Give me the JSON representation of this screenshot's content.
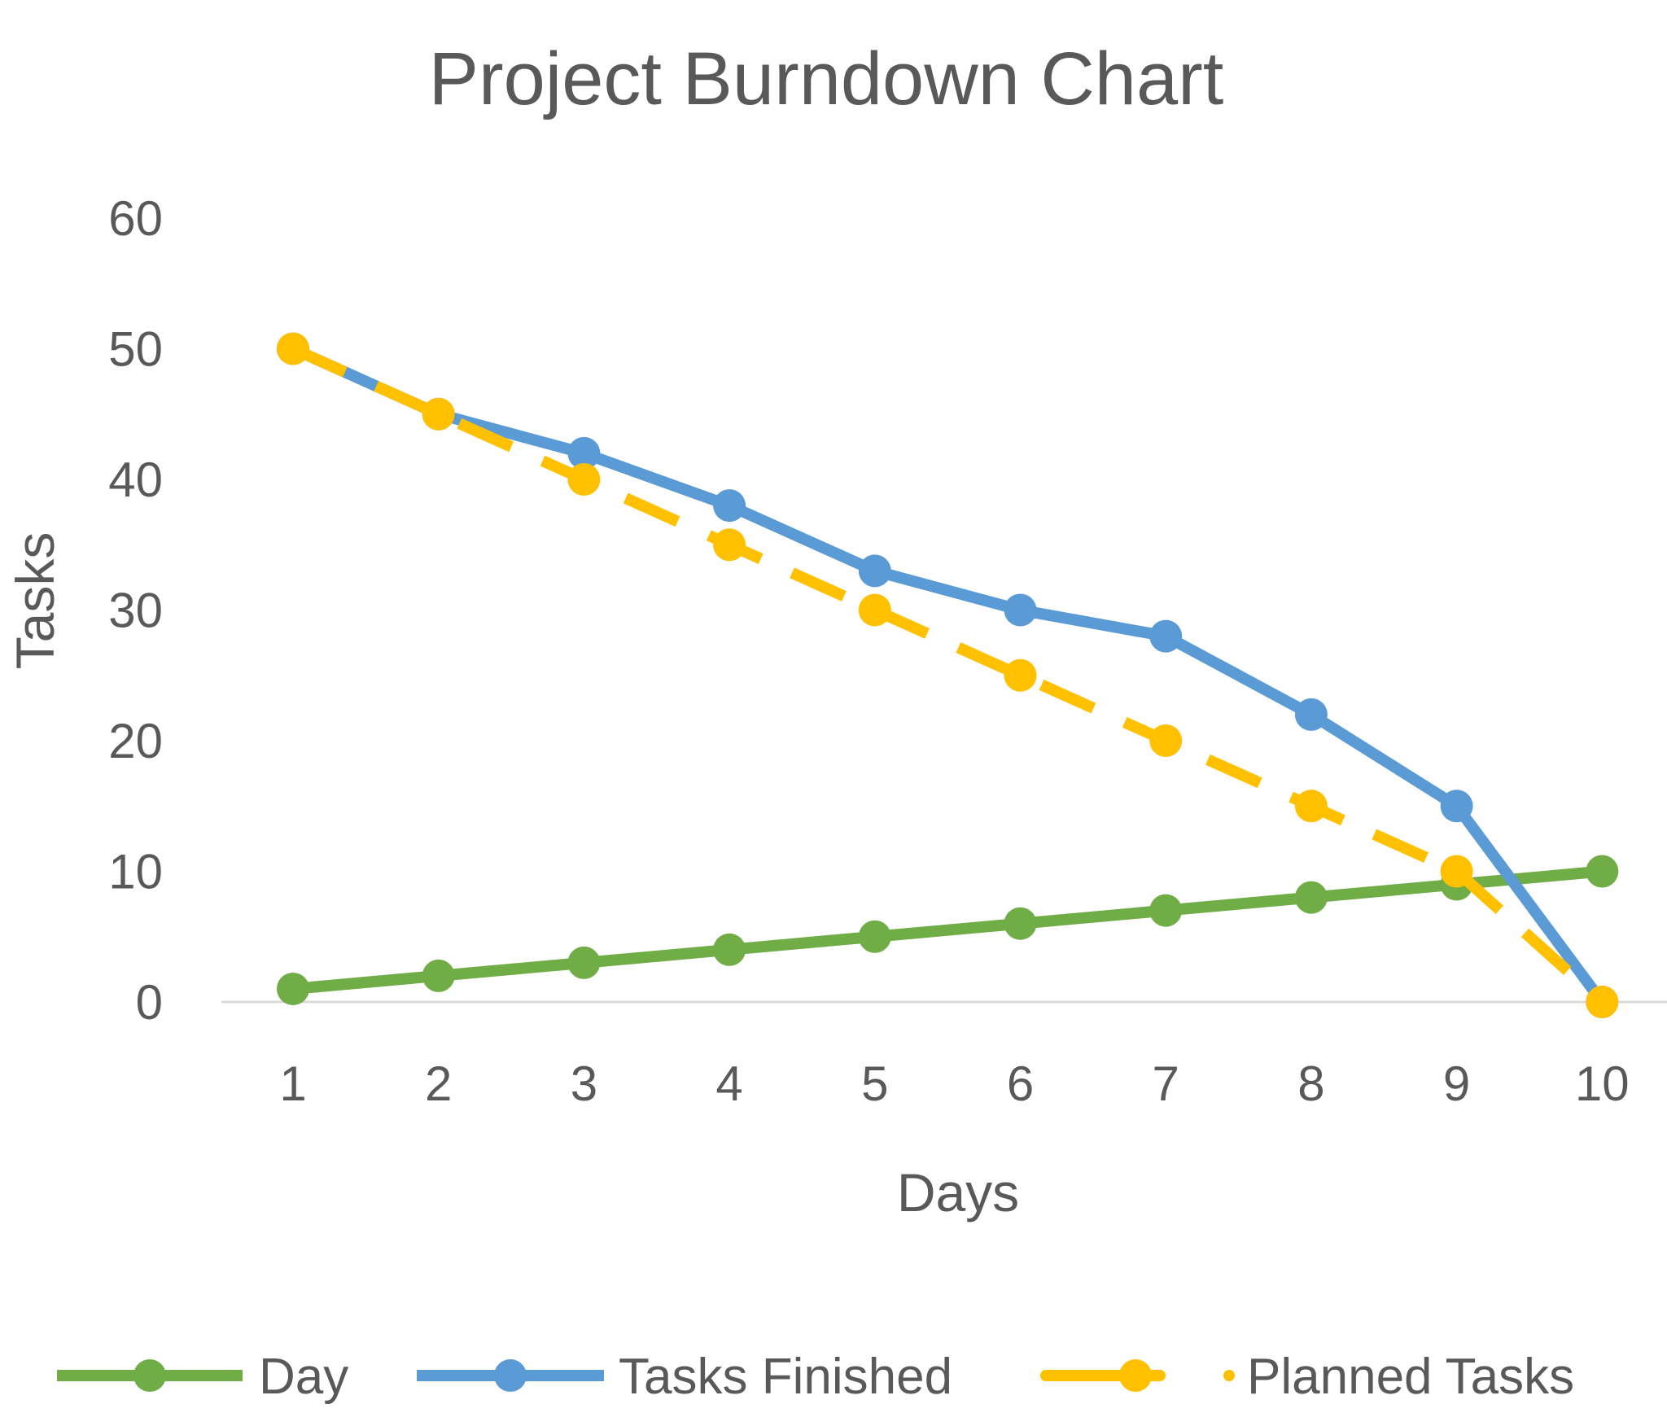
{
  "chart_data": {
    "type": "line",
    "title": "Project Burndown Chart",
    "xlabel": "Days",
    "ylabel": "Tasks",
    "x": [
      1,
      2,
      3,
      4,
      5,
      6,
      7,
      8,
      9,
      10
    ],
    "x_tick_labels": [
      "1",
      "2",
      "3",
      "4",
      "5",
      "6",
      "7",
      "8",
      "9",
      "10"
    ],
    "ylim": [
      0,
      60
    ],
    "y_ticks": [
      0,
      10,
      20,
      30,
      40,
      50,
      60
    ],
    "grid": false,
    "legend_position": "bottom",
    "series": [
      {
        "name": "Day",
        "color": "#70AD47",
        "style": "solid",
        "values": [
          1,
          2,
          3,
          4,
          5,
          6,
          7,
          8,
          9,
          10
        ]
      },
      {
        "name": "Tasks Finished",
        "color": "#5B9BD5",
        "style": "solid",
        "values": [
          50,
          45,
          42,
          38,
          33,
          30,
          28,
          22,
          15,
          0
        ]
      },
      {
        "name": "Planned Tasks",
        "color": "#FFC000",
        "style": "dashed",
        "values": [
          50,
          45,
          40,
          35,
          30,
          25,
          20,
          15,
          10,
          0
        ]
      }
    ]
  }
}
